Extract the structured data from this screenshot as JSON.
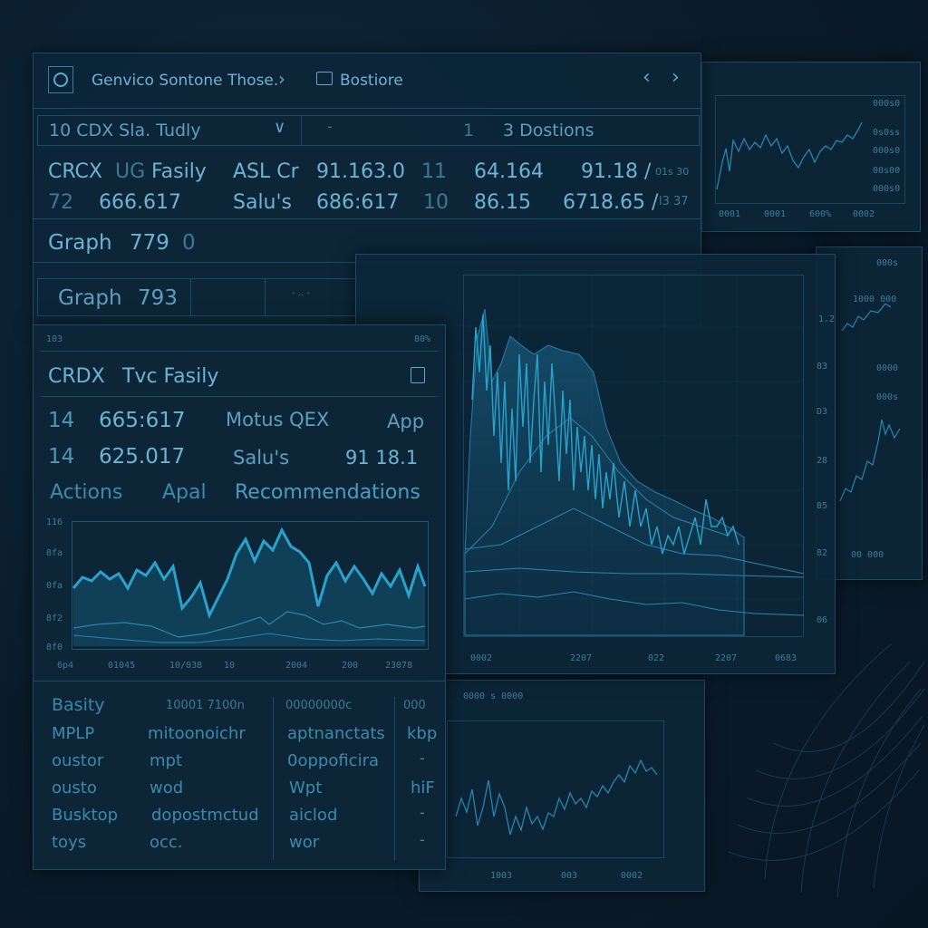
{
  "header": {
    "title": "Genvico Sontone Those.",
    "breadcrumb": "Bostiore"
  },
  "top_panel": {
    "dropdown_value": "10  CDX Sla. Tudly",
    "toolbar_mark": "-",
    "count": "1",
    "sections_label": "3 Dostions",
    "row1": {
      "sym": "CRCX",
      "tag": "UG",
      "name": "Fasily",
      "col": "ASL Cr",
      "v1": "91.163.0",
      "v2": "11",
      "v3": "64.164",
      "v4": "91.18 /",
      "v5": "01s 30"
    },
    "row2": {
      "sym": "72",
      "val": "666.617",
      "name": "Salu's",
      "v1": "686:617",
      "v2": "10",
      "v3": "86.15",
      "v4": "6718.65 /",
      "v5": "l3 37"
    },
    "graph1_label": "Graph",
    "graph1_value": "779",
    "graph1_extra": "0",
    "graph2_label": "Graph",
    "graph2_value": "793",
    "graph2_extra": "- .. -"
  },
  "front_panel": {
    "corner_left": "103",
    "corner_right": "80%",
    "sym": "CRDX",
    "title": "Tvc Fasily",
    "row1": {
      "a": "14",
      "b": "665:617",
      "c": "Motus QEX",
      "d": "App"
    },
    "row2": {
      "a": "14",
      "b": "625.017",
      "c": "Salu's",
      "d": "91 18.1"
    },
    "tabs": [
      "Actions",
      "Apal",
      "Recommendations"
    ],
    "y_ticks": [
      "116",
      "8fa",
      "0fa",
      "8f2",
      "8f0"
    ],
    "x_ticks": [
      "6p4",
      "01045",
      "10/038",
      "10",
      "2004",
      "200",
      "23078"
    ]
  },
  "bottom_list": {
    "header": {
      "c1": "Basity",
      "c2": "10001 7100n",
      "c3": "00000000c",
      "c4": "000"
    },
    "rows": [
      {
        "c1": "MPLP",
        "c2": "mitoonoichr",
        "c3": "aptnanctats",
        "c4": "kbp"
      },
      {
        "c1": "oustor",
        "c2": "mpt",
        "c3": "0oppoficira",
        "c4": "-"
      },
      {
        "c1": "ousto",
        "c2": "wod",
        "c3": "Wpt",
        "c4": "hiF"
      },
      {
        "c1": "Busktop",
        "c2": "dopostmctud",
        "c3": "aiclod",
        "c4": "-"
      },
      {
        "c1": "toys",
        "c2": "occ.",
        "c3": "wor",
        "c4": "-"
      }
    ]
  },
  "center_chart": {
    "y_ticks": [
      "1.2",
      "83",
      "D3",
      "28",
      "85",
      "82",
      "06"
    ],
    "x_ticks": [
      "0002",
      "2207",
      "022",
      "2207",
      "0683"
    ]
  },
  "right_top_chart": {
    "y_ticks": [
      "000s0",
      "0s0ss",
      "000s0",
      "00s00",
      "000s0"
    ],
    "x_ticks": [
      "0001",
      "0001",
      "600%",
      "0002"
    ]
  },
  "right_mid_chart": {
    "y_ticks": [
      "000s",
      "1000 000",
      "0000",
      "000s"
    ],
    "x_ticks": [
      "00 000"
    ]
  },
  "bottom_chart": {
    "top_label": "0000 s 0000",
    "x_ticks": [
      "1003",
      "003",
      "0002"
    ]
  },
  "colors": {
    "accent": "#2aa3cc",
    "text": "#6fb3d2",
    "panel": "#0c2638",
    "border": "#1f4a66"
  }
}
